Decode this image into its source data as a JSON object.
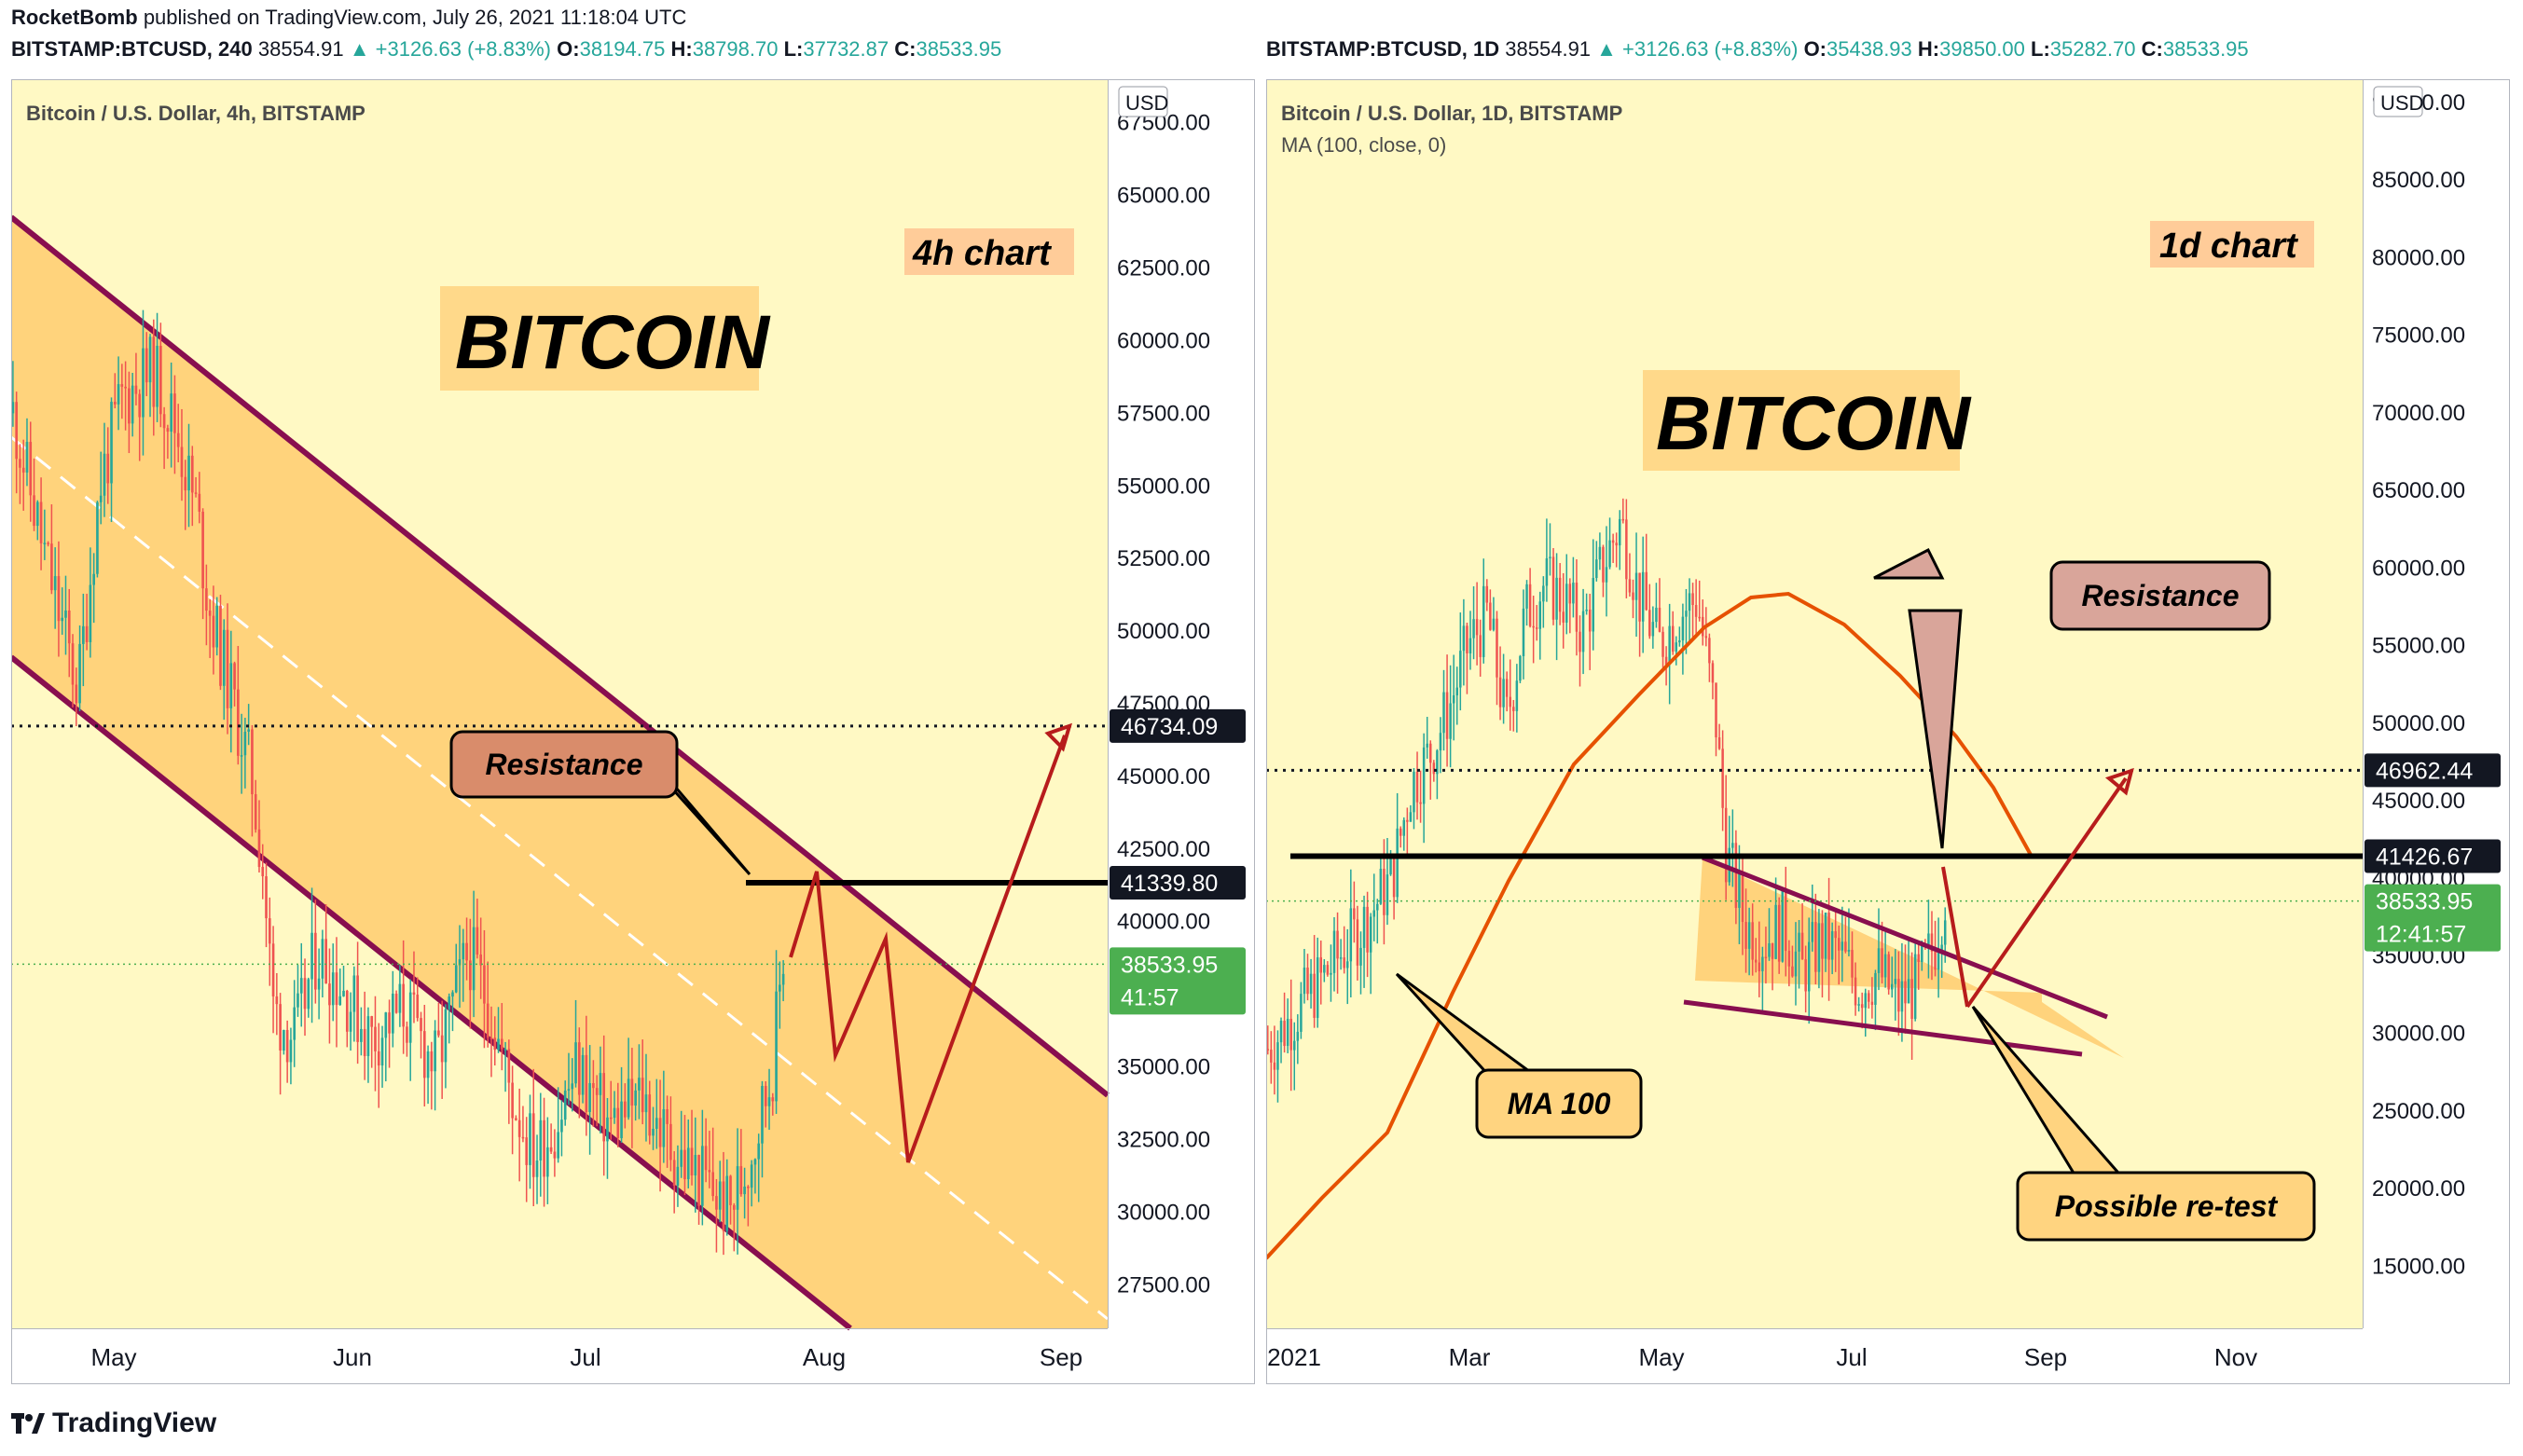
{
  "publisher_line": {
    "author": "RocketBomb",
    "text": "published on TradingView.com, July 26, 2021 11:18:04 UTC"
  },
  "left_header": {
    "symbol": "BITSTAMP:BTCUSD, 240",
    "price": "38554.91",
    "change": "▲ +3126.63 (+8.83%)",
    "o": "38194.75",
    "h": "38798.70",
    "l": "37732.87",
    "c": "38533.95"
  },
  "right_header": {
    "symbol": "BITSTAMP:BTCUSD, 1D",
    "price": "38554.91",
    "change": "▲ +3126.63 (+8.83%)",
    "o": "35438.93",
    "h": "39850.00",
    "l": "35282.70",
    "c": "38533.95"
  },
  "footer": {
    "brand": "TradingView"
  },
  "colors": {
    "background": "#fff9c4",
    "channel_fill": "#ffcc70",
    "channel_line": "#880e4f",
    "arrow": "#b71c1c",
    "ma": "#e65100",
    "up": "#26a69a",
    "down": "#ef5350",
    "price_label": "#4caf50"
  },
  "chart_data": [
    {
      "type": "candlestick",
      "title": "Bitcoin / U.S. Dollar, 4h, BITSTAMP",
      "currency": "USD",
      "banner": "BITCOIN",
      "timeframe_label": "4h chart",
      "x_ticks": [
        "May",
        "Jun",
        "Jul",
        "Aug",
        "Sep"
      ],
      "y_ticks": [
        67500,
        65000,
        62500,
        60000,
        57500,
        55000,
        52500,
        50000,
        47500,
        45000,
        42500,
        40000,
        35000,
        32500,
        30000,
        27500
      ],
      "ylim": [
        26000,
        69000
      ],
      "price_close_path": [
        [
          0,
          57500
        ],
        [
          0.03,
          52500
        ],
        [
          0.06,
          48000
        ],
        [
          0.08,
          55000
        ],
        [
          0.1,
          58000
        ],
        [
          0.13,
          59000
        ],
        [
          0.15,
          57000
        ],
        [
          0.17,
          54000
        ],
        [
          0.18,
          51000
        ],
        [
          0.2,
          48000
        ],
        [
          0.22,
          45000
        ],
        [
          0.23,
          42000
        ],
        [
          0.24,
          37000
        ],
        [
          0.26,
          36000
        ],
        [
          0.28,
          39000
        ],
        [
          0.3,
          38000
        ],
        [
          0.33,
          36000
        ],
        [
          0.36,
          37000
        ],
        [
          0.39,
          35000
        ],
        [
          0.42,
          39000
        ],
        [
          0.44,
          37000
        ],
        [
          0.46,
          34000
        ],
        [
          0.48,
          32000
        ],
        [
          0.5,
          33000
        ],
        [
          0.52,
          35000
        ],
        [
          0.55,
          33000
        ],
        [
          0.58,
          34000
        ],
        [
          0.61,
          32000
        ],
        [
          0.64,
          31000
        ],
        [
          0.66,
          30000
        ],
        [
          0.68,
          32000
        ],
        [
          0.7,
          35000
        ],
        [
          0.71,
          39000
        ]
      ],
      "last_price": {
        "value": "38533.95",
        "countdown": "41:57"
      },
      "resistance": {
        "label": "Resistance",
        "value": "41339.80"
      },
      "target": {
        "value": "46734.09"
      },
      "channel": {
        "upper": [
          [
            59000,
            "start"
          ],
          [
            34300,
            "end"
          ]
        ],
        "lower": [
          [
            48500,
            "start"
          ],
          [
            26000,
            "end"
          ]
        ]
      }
    },
    {
      "type": "candlestick",
      "title": "Bitcoin / U.S. Dollar, 1D, BITSTAMP",
      "subtitle": "MA (100, close, 0)",
      "currency": "USD",
      "banner": "BITCOIN",
      "timeframe_label": "1d chart",
      "x_ticks": [
        "2021",
        "Mar",
        "May",
        "Jul",
        "Sep",
        "Nov"
      ],
      "y_ticks": [
        90000,
        85000,
        80000,
        75000,
        70000,
        65000,
        60000,
        55000,
        50000,
        45000,
        40000,
        35000,
        30000,
        25000,
        20000,
        15000
      ],
      "ylim": [
        11000,
        91500
      ],
      "price_close_path": [
        [
          0,
          29000
        ],
        [
          0.05,
          33000
        ],
        [
          0.1,
          37000
        ],
        [
          0.13,
          40000
        ],
        [
          0.15,
          46000
        ],
        [
          0.17,
          48000
        ],
        [
          0.19,
          51000
        ],
        [
          0.21,
          55000
        ],
        [
          0.23,
          57000
        ],
        [
          0.25,
          50000
        ],
        [
          0.27,
          57000
        ],
        [
          0.29,
          59000
        ],
        [
          0.31,
          58000
        ],
        [
          0.33,
          56000
        ],
        [
          0.35,
          60000
        ],
        [
          0.37,
          63000
        ],
        [
          0.39,
          58000
        ],
        [
          0.41,
          55000
        ],
        [
          0.43,
          57000
        ],
        [
          0.45,
          58000
        ],
        [
          0.47,
          50000
        ],
        [
          0.48,
          42000
        ],
        [
          0.5,
          37000
        ],
        [
          0.52,
          36000
        ],
        [
          0.54,
          37000
        ],
        [
          0.56,
          34000
        ],
        [
          0.58,
          36000
        ],
        [
          0.6,
          35000
        ],
        [
          0.62,
          33000
        ],
        [
          0.64,
          34000
        ],
        [
          0.66,
          32000
        ],
        [
          0.68,
          33000
        ],
        [
          0.7,
          36000
        ],
        [
          0.71,
          39000
        ]
      ],
      "moving_average": {
        "label": "MA 100"
      },
      "last_price": {
        "value": "38533.95",
        "countdown": "12:41:57"
      },
      "resistance": {
        "label": "Resistance",
        "value": "41426.67"
      },
      "target": {
        "value": "46962.44"
      },
      "annotation": "Possible re-test"
    }
  ]
}
